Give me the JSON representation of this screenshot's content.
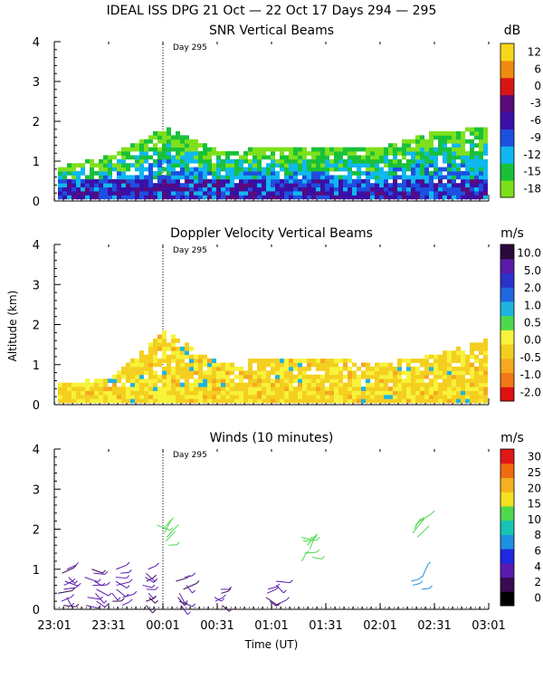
{
  "header": {
    "title": "IDEAL ISS DPG  21 Oct — 22 Oct 17 Days 294 — 295"
  },
  "day_marker": "Day 295",
  "x_axis": {
    "label": "Time (UT)",
    "ticks": [
      "23:01",
      "23:31",
      "00:01",
      "00:31",
      "01:01",
      "01:31",
      "02:01",
      "02:31",
      "03:01"
    ]
  },
  "y_axis": {
    "label": "Altitude (km)",
    "ticks": [
      "0",
      "1",
      "2",
      "3",
      "4"
    ]
  },
  "palette": {
    "snr": [
      "#7ee01c",
      "#19c13a",
      "#0fb8f0",
      "#1e4fe0",
      "#3b0fa6",
      "#5a0a7a",
      "#d81515",
      "#f08a10",
      "#f7d71a"
    ],
    "doppler": [
      "#e01010",
      "#f07818",
      "#f5a820",
      "#f4cf20",
      "#f7f23a",
      "#4ed84e",
      "#1eb4e0",
      "#1e68e0",
      "#2a32c8",
      "#5b1aa8",
      "#2a0a3a"
    ],
    "winds": [
      "#000000",
      "#3a0a52",
      "#5a1ab0",
      "#1e28e0",
      "#1e90e0",
      "#16c4b4",
      "#4ed84e",
      "#f4e020",
      "#f5b020",
      "#f06a10",
      "#e01818"
    ]
  },
  "chart_data": [
    {
      "type": "heatmap",
      "title": "SNR Vertical Beams",
      "units": "dB",
      "xlabel": "Time (UT)",
      "ylabel": "Altitude (km)",
      "ylim": [
        0,
        4
      ],
      "x_ticks": [
        "23:01",
        "23:31",
        "00:01",
        "00:31",
        "01:01",
        "01:31",
        "02:01",
        "02:31",
        "03:01"
      ],
      "colorbar_ticks": [
        "12",
        "6",
        "0",
        "-3",
        "-6",
        "-9",
        "-12",
        "-15",
        "-18"
      ],
      "colorbar_levels": [
        -18,
        -15,
        -12,
        -9,
        -6,
        -3,
        0,
        6,
        12
      ],
      "max_altitude_km_by_time": [
        {
          "time": "23:01",
          "km": 0.8
        },
        {
          "time": "23:31",
          "km": 1.1
        },
        {
          "time": "00:01",
          "km": 1.8
        },
        {
          "time": "00:31",
          "km": 1.2
        },
        {
          "time": "01:01",
          "km": 1.3
        },
        {
          "time": "01:31",
          "km": 1.3
        },
        {
          "time": "02:01",
          "km": 1.3
        },
        {
          "time": "02:31",
          "km": 1.7
        },
        {
          "time": "03:01",
          "km": 1.8
        }
      ]
    },
    {
      "type": "heatmap",
      "title": "Doppler Velocity Vertical Beams",
      "units": "m/s",
      "xlabel": "Time (UT)",
      "ylabel": "Altitude (km)",
      "ylim": [
        0,
        4
      ],
      "x_ticks": [
        "23:01",
        "23:31",
        "00:01",
        "00:31",
        "01:01",
        "01:31",
        "02:01",
        "02:31",
        "03:01"
      ],
      "colorbar_ticks": [
        "10.0",
        "5.0",
        "2.0",
        "1.0",
        "0.5",
        "0.0",
        "-0.5",
        "-1.0",
        "-2.0"
      ],
      "max_altitude_km_by_time": [
        {
          "time": "23:01",
          "km": 0.5
        },
        {
          "time": "23:31",
          "km": 0.6
        },
        {
          "time": "00:01",
          "km": 1.8
        },
        {
          "time": "00:31",
          "km": 1.0
        },
        {
          "time": "01:01",
          "km": 1.1
        },
        {
          "time": "01:31",
          "km": 1.1
        },
        {
          "time": "02:01",
          "km": 1.0
        },
        {
          "time": "02:31",
          "km": 1.2
        },
        {
          "time": "03:01",
          "km": 1.6
        }
      ]
    },
    {
      "type": "scatter",
      "title": "Winds (10 minutes)",
      "units": "m/s",
      "xlabel": "Time (UT)",
      "ylabel": "Altitude (km)",
      "ylim": [
        0,
        4
      ],
      "x_ticks": [
        "23:01",
        "23:31",
        "00:01",
        "00:31",
        "01:01",
        "01:31",
        "02:01",
        "02:31",
        "03:01"
      ],
      "colorbar_ticks": [
        "30",
        "25",
        "20",
        "15",
        "10",
        "8",
        "6",
        "4",
        "2",
        "0"
      ],
      "barb_clusters": [
        {
          "time": "23:06",
          "km_min": 0.1,
          "km_max": 1.1,
          "speed": 4
        },
        {
          "time": "23:21",
          "km_min": 0.1,
          "km_max": 1.1,
          "speed": 4
        },
        {
          "time": "23:36",
          "km_min": 0.1,
          "km_max": 1.1,
          "speed": 4
        },
        {
          "time": "23:51",
          "km_min": 0.1,
          "km_max": 1.1,
          "speed": 4
        },
        {
          "time": "00:01",
          "km_min": 1.6,
          "km_max": 2.2,
          "speed": 12
        },
        {
          "time": "00:11",
          "km_min": 0.1,
          "km_max": 0.9,
          "speed": 4
        },
        {
          "time": "00:31",
          "km_min": 0.1,
          "km_max": 0.6,
          "speed": 4
        },
        {
          "time": "01:01",
          "km_min": 0.1,
          "km_max": 0.8,
          "speed": 4
        },
        {
          "time": "01:21",
          "km_min": 1.2,
          "km_max": 1.9,
          "speed": 12
        },
        {
          "time": "02:21",
          "km_min": 1.8,
          "km_max": 2.3,
          "speed": 12
        },
        {
          "time": "02:21",
          "km_min": 0.5,
          "km_max": 0.9,
          "speed": 10
        }
      ]
    }
  ]
}
